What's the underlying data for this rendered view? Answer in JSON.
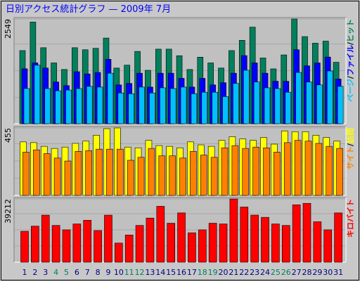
{
  "title": "日別アクセス統計グラフ — 2009年 7月",
  "legend_separator": "/",
  "chart_data": [
    {
      "type": "bar",
      "ylim": [
        0,
        2549
      ],
      "yticks": [
        2549
      ],
      "series": [
        {
          "name": "ヒット",
          "color": "#00805c",
          "values": [
            1780,
            2475,
            1850,
            1480,
            1320,
            1850,
            1800,
            1835,
            2085,
            1355,
            1425,
            1760,
            1300,
            1815,
            1815,
            1655,
            1320,
            1620,
            1480,
            1355,
            1780,
            2030,
            2350,
            1600,
            1335,
            1675,
            2549,
            2120,
            1960,
            2010,
            1495
          ]
        },
        {
          "name": "ファイル",
          "color": "#0000ff",
          "values": [
            1337,
            1480,
            1355,
            1016,
            927,
            1266,
            1212,
            1248,
            1569,
            945,
            981,
            1230,
            892,
            1230,
            1230,
            1105,
            892,
            1105,
            945,
            998,
            1230,
            1658,
            1480,
            1230,
            1034,
            1034,
            1801,
            1409,
            1480,
            1623,
            1088
          ]
        },
        {
          "name": "ページ",
          "color": "#00c0ff",
          "values": [
            856,
            1426,
            856,
            802,
            820,
            856,
            909,
            892,
            1230,
            749,
            731,
            892,
            749,
            874,
            856,
            892,
            731,
            767,
            767,
            660,
            981,
            1302,
            1016,
            874,
            856,
            767,
            1248,
            1016,
            945,
            1284,
            909
          ]
        }
      ]
    },
    {
      "type": "bar",
      "ylim": [
        0,
        455
      ],
      "yticks": [
        455
      ],
      "series": [
        {
          "name": "訪問",
          "color": "#ffff00",
          "values": [
            361,
            356,
            331,
            317,
            326,
            351,
            366,
            406,
            450,
            455,
            326,
            321,
            371,
            336,
            331,
            321,
            361,
            341,
            331,
            371,
            396,
            381,
            371,
            391,
            346,
            435,
            430,
            430,
            406,
            391,
            366
          ]
        },
        {
          "name": "サイト",
          "color": "#ff8000",
          "values": [
            292,
            307,
            282,
            252,
            232,
            297,
            302,
            312,
            312,
            312,
            237,
            257,
            317,
            267,
            267,
            252,
            297,
            272,
            257,
            321,
            336,
            317,
            326,
            321,
            292,
            356,
            371,
            366,
            351,
            331,
            317
          ]
        }
      ]
    },
    {
      "type": "bar",
      "ylim": [
        0,
        39212
      ],
      "yticks": [
        39212
      ],
      "categories": [
        "1",
        "2",
        "3",
        "4",
        "5",
        "6",
        "7",
        "8",
        "9",
        "10",
        "11",
        "12",
        "13",
        "14",
        "15",
        "16",
        "17",
        "18",
        "19",
        "20",
        "21",
        "22",
        "23",
        "24",
        "25",
        "26",
        "27",
        "28",
        "29",
        "30",
        "31"
      ],
      "category_colors": [
        "#000080",
        "#000080",
        "#000080",
        "#008060",
        "#008060",
        "#000080",
        "#000080",
        "#000080",
        "#000080",
        "#000080",
        "#008060",
        "#008060",
        "#000080",
        "#000080",
        "#000080",
        "#000080",
        "#000080",
        "#008060",
        "#008060",
        "#000080",
        "#000080",
        "#000080",
        "#000080",
        "#000080",
        "#008060",
        "#008060",
        "#000080",
        "#000080",
        "#000080",
        "#000080",
        "#000080"
      ],
      "series": [
        {
          "name": "キロバイト",
          "color": "#ff0000",
          "values": [
            19152,
            22344,
            29184,
            22800,
            20064,
            23712,
            25992,
            19608,
            29184,
            11856,
            16872,
            22800,
            27360,
            34656,
            24168,
            30552,
            18240,
            20064,
            24168,
            23712,
            39212,
            34200,
            29184,
            27816,
            23712,
            22800,
            35568,
            36480,
            25080,
            20064,
            30552
          ]
        }
      ]
    }
  ]
}
